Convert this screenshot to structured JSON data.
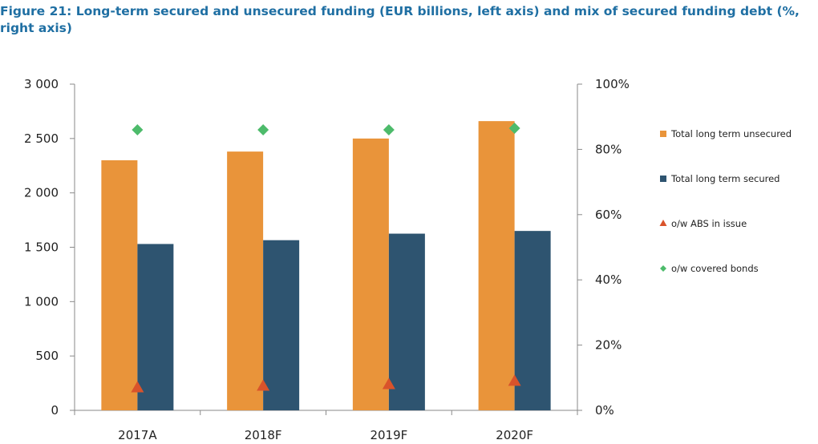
{
  "chart_data": {
    "type": "bar",
    "title": "Figure 21: Long-term secured and unsecured funding (EUR billions, left axis) and mix of secured funding debt (%, right axis)",
    "categories": [
      "2017A",
      "2018F",
      "2019F",
      "2020F"
    ],
    "y_left": {
      "range": [
        0,
        3000
      ],
      "ticks": [
        0,
        500,
        1000,
        1500,
        2000,
        2500,
        3000
      ],
      "tick_labels": [
        "0",
        "500",
        "1 000",
        "1 500",
        "2 000",
        "2 500",
        "3 000"
      ]
    },
    "y_right": {
      "range": [
        0,
        100
      ],
      "ticks": [
        0,
        20,
        40,
        60,
        80,
        100
      ],
      "tick_labels": [
        "0%",
        "20%",
        "40%",
        "60%",
        "80%",
        "100%"
      ]
    },
    "series": [
      {
        "name": "Total long term unsecured",
        "kind": "bar",
        "axis": "left",
        "color": "#e9943a",
        "values": [
          2300,
          2380,
          2500,
          2660
        ]
      },
      {
        "name": "Total long term secured",
        "kind": "bar",
        "axis": "left",
        "color": "#2e5470",
        "values": [
          1530,
          1565,
          1625,
          1650
        ]
      },
      {
        "name": "o/w ABS in issue",
        "kind": "marker",
        "marker": "triangle",
        "axis": "right",
        "color": "#d9532b",
        "values": [
          7,
          7.5,
          8,
          9
        ]
      },
      {
        "name": "o/w covered bonds",
        "kind": "marker",
        "marker": "diamond",
        "axis": "right",
        "color": "#4dbb6b",
        "values": [
          86,
          86,
          86,
          86.5
        ]
      }
    ],
    "legend": "right",
    "grid": false
  }
}
